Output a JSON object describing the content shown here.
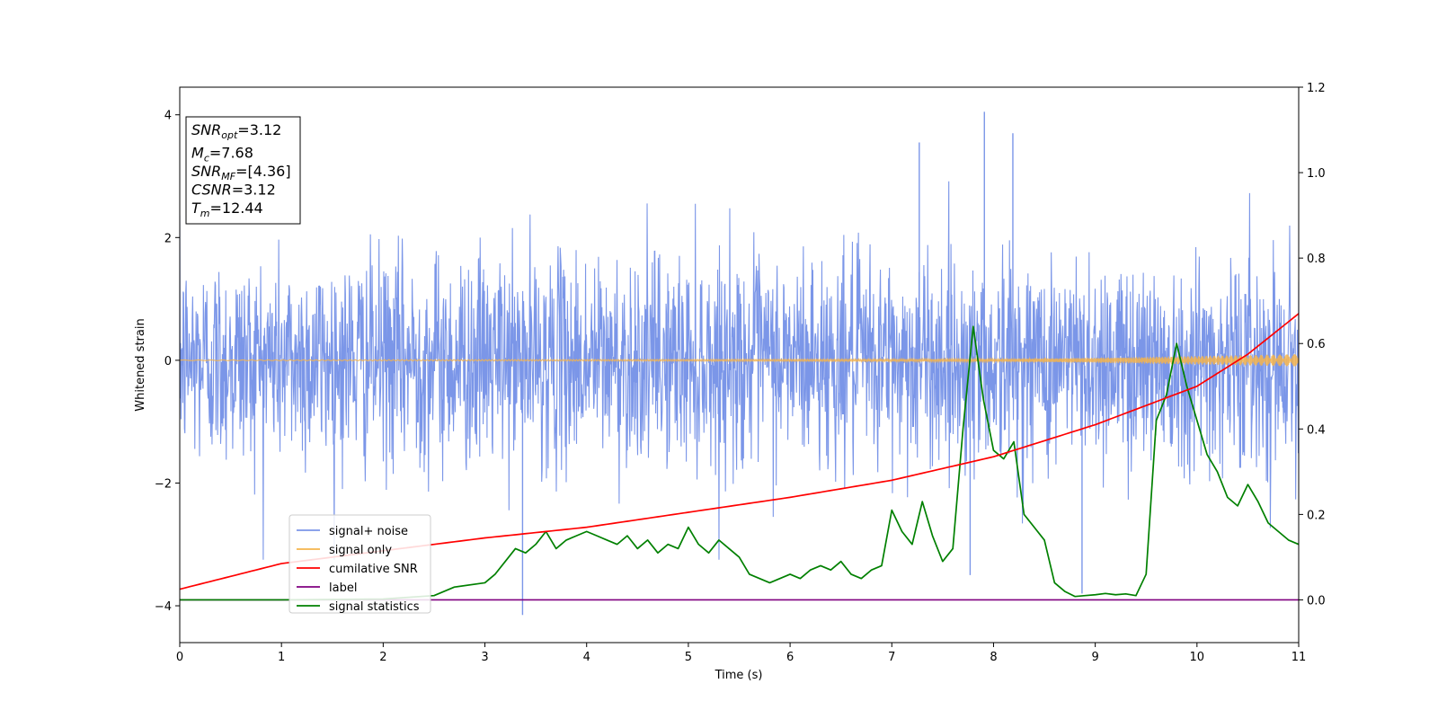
{
  "chart_data": {
    "type": "line",
    "xlabel": "Time (s)",
    "ylabel": "Whitened strain",
    "xlim": [
      0,
      11
    ],
    "ylim": [
      -4.6,
      4.45
    ],
    "y2lim": [
      -0.1,
      1.2
    ],
    "xticks": [
      "0",
      "1",
      "2",
      "3",
      "4",
      "5",
      "6",
      "7",
      "8",
      "9",
      "10",
      "11"
    ],
    "yticks": [
      "4",
      "2",
      "0",
      "−2",
      "−4"
    ],
    "y2ticks": [
      "1.2",
      "1.0",
      "0.8",
      "0.6",
      "0.4",
      "0.2",
      "0.0"
    ],
    "legend_position": "lower-left",
    "colors": {
      "noise": "#7b96e8",
      "signal": "#f5b44c",
      "snr": "#ff0000",
      "label": "#800080",
      "stats": "#008000"
    },
    "annotation": {
      "lines": [
        {
          "main": "SNR",
          "sub": "opt",
          "value": "=3.12"
        },
        {
          "main": "M",
          "sub": "c",
          "value": "=7.68"
        },
        {
          "main": "SNR",
          "sub": "MF",
          "value": "=[4.36]"
        },
        {
          "main": "CSNR",
          "sub": "",
          "value": "=3.12"
        },
        {
          "main": "T",
          "sub": "m",
          "value": "=12.44"
        }
      ]
    },
    "series": [
      {
        "name": "signal+ noise",
        "axis": "left",
        "noise_sigma": 0.85,
        "approx_range": [
          -4.15,
          4.05
        ],
        "spikes": [
          [
            7.91,
            4.05
          ],
          [
            8.19,
            3.7
          ],
          [
            7.27,
            3.55
          ],
          [
            3.37,
            -4.15
          ],
          [
            8.87,
            -3.8
          ],
          [
            7.77,
            -3.5
          ]
        ]
      },
      {
        "name": "signal only",
        "axis": "left",
        "envelope": {
          "x": [
            0,
            8,
            9,
            10,
            11
          ],
          "amp": [
            0.005,
            0.02,
            0.04,
            0.07,
            0.1
          ]
        }
      },
      {
        "name": "cumilative SNR",
        "axis": "right",
        "x": [
          0,
          1,
          2,
          3,
          4,
          5,
          6,
          7,
          8,
          9,
          10,
          10.5,
          11
        ],
        "y": [
          0.025,
          0.085,
          0.115,
          0.145,
          0.17,
          0.205,
          0.24,
          0.28,
          0.335,
          0.41,
          0.5,
          0.575,
          0.67
        ]
      },
      {
        "name": "label",
        "axis": "right",
        "x": [
          0,
          11
        ],
        "y": [
          0.0,
          0.0
        ]
      },
      {
        "name": "signal statistics",
        "axis": "right",
        "x": [
          0,
          1,
          2,
          2.5,
          2.7,
          3.0,
          3.1,
          3.2,
          3.3,
          3.4,
          3.5,
          3.6,
          3.7,
          3.8,
          3.9,
          4.0,
          4.1,
          4.2,
          4.3,
          4.4,
          4.5,
          4.6,
          4.7,
          4.8,
          4.9,
          5.0,
          5.1,
          5.2,
          5.3,
          5.4,
          5.5,
          5.6,
          5.7,
          5.8,
          5.9,
          6.0,
          6.1,
          6.2,
          6.3,
          6.4,
          6.5,
          6.6,
          6.7,
          6.8,
          6.9,
          7.0,
          7.1,
          7.2,
          7.3,
          7.4,
          7.5,
          7.6,
          7.7,
          7.8,
          7.9,
          8.0,
          8.1,
          8.2,
          8.3,
          8.4,
          8.5,
          8.6,
          8.7,
          8.8,
          8.9,
          9.0,
          9.1,
          9.2,
          9.3,
          9.4,
          9.5,
          9.6,
          9.7,
          9.8,
          9.9,
          10.0,
          10.1,
          10.2,
          10.3,
          10.4,
          10.5,
          10.6,
          10.7,
          10.8,
          10.9,
          11.0
        ],
        "y": [
          0.0,
          0.0,
          0.002,
          0.01,
          0.03,
          0.04,
          0.06,
          0.09,
          0.12,
          0.11,
          0.13,
          0.16,
          0.12,
          0.14,
          0.15,
          0.16,
          0.15,
          0.14,
          0.13,
          0.15,
          0.12,
          0.14,
          0.11,
          0.13,
          0.12,
          0.17,
          0.13,
          0.11,
          0.14,
          0.12,
          0.1,
          0.06,
          0.05,
          0.04,
          0.05,
          0.06,
          0.05,
          0.07,
          0.08,
          0.07,
          0.09,
          0.06,
          0.05,
          0.07,
          0.08,
          0.21,
          0.16,
          0.13,
          0.23,
          0.15,
          0.09,
          0.12,
          0.4,
          0.64,
          0.47,
          0.35,
          0.33,
          0.37,
          0.2,
          0.17,
          0.14,
          0.04,
          0.02,
          0.008,
          0.01,
          0.012,
          0.015,
          0.012,
          0.014,
          0.01,
          0.06,
          0.42,
          0.48,
          0.6,
          0.5,
          0.42,
          0.34,
          0.3,
          0.24,
          0.22,
          0.27,
          0.23,
          0.18,
          0.16,
          0.14,
          0.13
        ]
      }
    ]
  }
}
